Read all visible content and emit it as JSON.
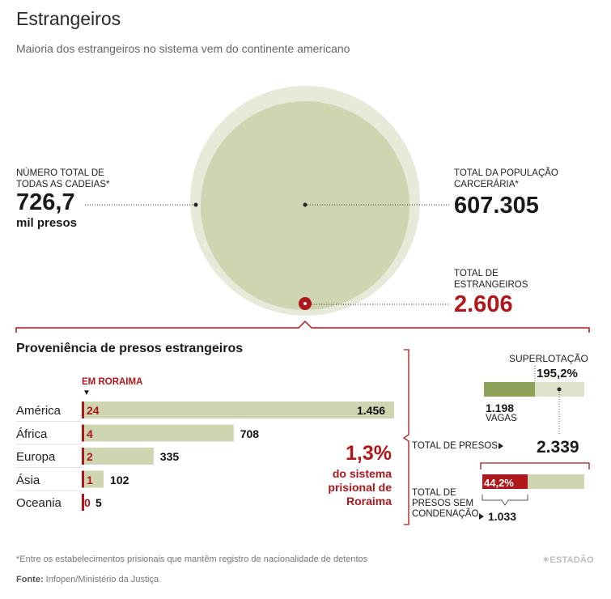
{
  "title": "Estrangeiros",
  "subtitle": "Maioria dos estrangeiros no sistema vem do continente americano",
  "summary": {
    "capacity_label": "NÚMERO TOTAL DE TODAS AS CADEIAS*",
    "capacity_value": "726,7",
    "capacity_unit": "mil presos",
    "population_label": "TOTAL DA POPULAÇÃO CARCERÁRIA*",
    "population_value": "607.305",
    "foreigners_label": "TOTAL DE ESTRANGEIROS",
    "foreigners_value": "2.606"
  },
  "colors": {
    "capacity_circle": "#e7ead9",
    "population_circle": "#cdd5b1",
    "bar_fill": "#cdd5b1",
    "bar_dark": "#8fa25a",
    "accent_red": "#b0171b"
  },
  "chart_data": [
    {
      "type": "bar",
      "title": "Proveniência de presos estrangeiros",
      "categories": [
        "América",
        "África",
        "Europa",
        "Ásia",
        "Oceania"
      ],
      "series": [
        {
          "name": "EM RORAIMA",
          "values": [
            24,
            4,
            2,
            1,
            0
          ],
          "labels": [
            "24",
            "4",
            "2",
            "1",
            "0"
          ]
        },
        {
          "name": "",
          "values": [
            1456,
            708,
            335,
            102,
            5
          ],
          "labels": [
            "1.456",
            "708",
            "335",
            "102",
            "5"
          ]
        }
      ],
      "xlim": [
        0,
        1456
      ]
    },
    {
      "type": "bar",
      "title": "",
      "categories": [
        "TOTAL DE PRESOS",
        "TOTAL DE PRESOS SEM CONDENAÇÃO"
      ],
      "values": [
        2339,
        1033
      ],
      "labels": [
        "2.339",
        "1.033"
      ]
    }
  ],
  "roraima": {
    "share_value": "1,3%",
    "share_text": [
      "do sistema",
      "prisional de",
      "Roraima"
    ],
    "overcrowding_label": "SUPERLOTAÇÃO",
    "overcrowding_value": "195,2%",
    "overcrowding_fraction": 0.512,
    "vacancies_value": "1.198",
    "vacancies_label": "VAGAS",
    "total_prisoners_label": "TOTAL DE PRESOS",
    "total_prisoners_value": "2.339",
    "unconvicted_label": [
      "TOTAL DE",
      "PRESOS SEM",
      "CONDENAÇÃO"
    ],
    "unconvicted_value": "1.033",
    "unconvicted_pct": "44,2%",
    "unconvicted_fraction": 0.442
  },
  "footnote": "*Entre os estabelecimentos prisionais que mantêm registro de nacionalidade de detentos",
  "source_label": "Fonte:",
  "source_text": " Infopen/Ministério da Justiça",
  "brand": "ESTADÃO"
}
